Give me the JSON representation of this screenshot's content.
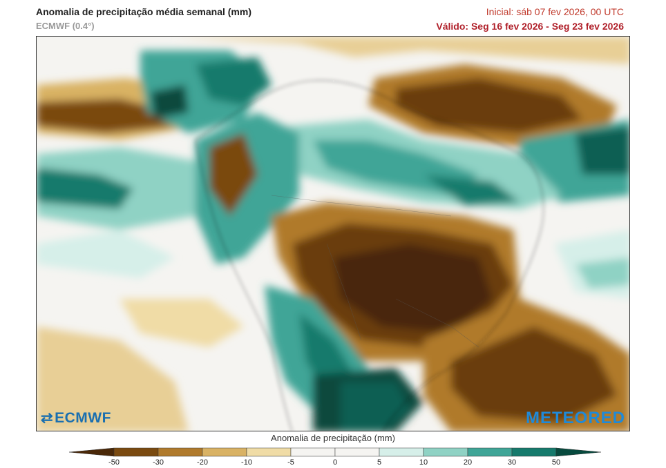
{
  "header": {
    "title": "Anomalia de precipitação média semanal (mm)",
    "model": "ECMWF (0.4°)",
    "init": "Inicial:  sáb 07 fev 2026, 00 UTC",
    "valid": "Válido: Seg 16 fev 2026 - Seg 23 fev 2026"
  },
  "logos": {
    "left": "ECMWF",
    "right": "METEORED"
  },
  "colorbar": {
    "title": "Anomalia de precipitação (mm)",
    "ticks": [
      "-50",
      "-30",
      "-20",
      "-10",
      "-5",
      "0",
      "5",
      "10",
      "20",
      "30",
      "50"
    ],
    "colors": [
      "#4a2808",
      "#7a4a10",
      "#b07a2c",
      "#d9b264",
      "#f0dca6",
      "#f5f4f1",
      "#f5f4f1",
      "#d6efe9",
      "#8fd2c4",
      "#3fa597",
      "#167a6c",
      "#074a3e"
    ]
  }
}
